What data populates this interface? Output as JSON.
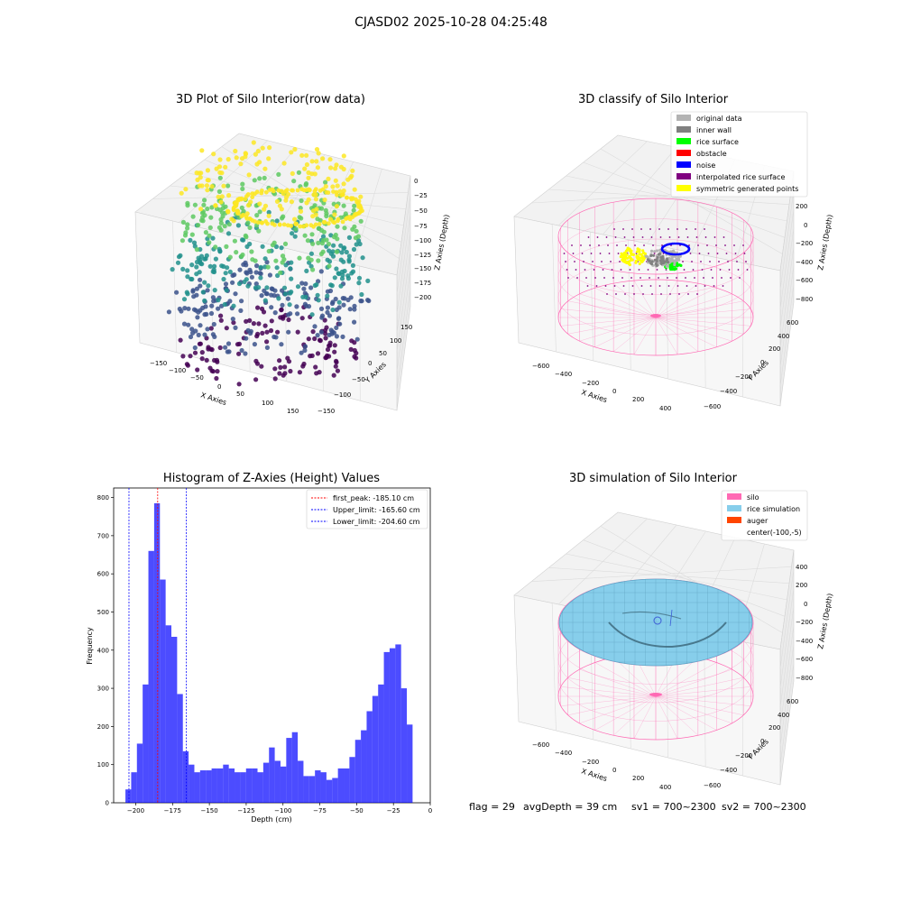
{
  "suptitle": "CJASD02 2025-10-28 04:25:48",
  "panels": {
    "raw": {
      "title": "3D Plot of Silo Interior(row data)",
      "xlabel": "X Axies",
      "ylabel": "Y Axies",
      "zlabel": "Z Axies (Depth)",
      "xticks": [
        "−150",
        "−100",
        "−50",
        "0",
        "50",
        "100",
        "150"
      ],
      "yticks": [
        "−150",
        "−100",
        "−50",
        "0",
        "50",
        "100",
        "150"
      ],
      "zticks": [
        "0",
        "−25",
        "−50",
        "−75",
        "−100",
        "−125",
        "−150",
        "−175",
        "−200"
      ],
      "colormap": [
        "#440154",
        "#3b528b",
        "#21918c",
        "#5ec962",
        "#fde725"
      ]
    },
    "classify": {
      "title": "3D classify of Silo Interior",
      "xlabel": "X Axies",
      "ylabel": "Y Axies",
      "zlabel": "Z Axies (Depth)",
      "xticks": [
        "−600",
        "−400",
        "−200",
        "0",
        "200",
        "400"
      ],
      "yticks": [
        "−600",
        "−400",
        "−200",
        "0",
        "200",
        "400",
        "600"
      ],
      "zticks": [
        "200",
        "0",
        "−200",
        "−400",
        "−600",
        "−800"
      ],
      "legend": [
        {
          "label": "original data",
          "color": "#b3b3b3"
        },
        {
          "label": "inner wall",
          "color": "#808080"
        },
        {
          "label": "rice surface",
          "color": "#00ff00"
        },
        {
          "label": "obstacle",
          "color": "#ff0000"
        },
        {
          "label": "noise",
          "color": "#0000ff"
        },
        {
          "label": "interpolated rice surface",
          "color": "#800080"
        },
        {
          "label": "symmetric generated points",
          "color": "#ffff00"
        }
      ],
      "wire_color": "#ff69b4"
    },
    "simulation": {
      "title": "3D simulation of Silo Interior",
      "xlabel": "X Axies",
      "ylabel": "Y Axies",
      "zlabel": "Z Axies (Depth)",
      "xticks": [
        "−600",
        "−400",
        "−200",
        "0",
        "200",
        "400"
      ],
      "yticks": [
        "−600",
        "−400",
        "−200",
        "0",
        "200",
        "400",
        "600"
      ],
      "zticks": [
        "400",
        "200",
        "0",
        "−200",
        "−400",
        "−600",
        "−800"
      ],
      "legend": [
        {
          "label": "silo",
          "color": "#ff69b4"
        },
        {
          "label": "rice simulation",
          "color": "#87ceeb"
        },
        {
          "label": "auger",
          "color": "#ff4500"
        },
        {
          "label": "center(-100,-5)",
          "color": ""
        }
      ]
    }
  },
  "footer": {
    "flag": "flag = 29",
    "avg_depth": "avgDepth = 39 cm",
    "sv1": "sv1 = 700~2300",
    "sv2": "sv2 = 700~2300"
  },
  "chart_data": {
    "type": "bar",
    "title": "Histogram of Z-Axies (Height) Values",
    "xlabel": "Depth (cm)",
    "ylabel": "Frequency",
    "xlim": [
      -215,
      0
    ],
    "ylim": [
      0,
      825
    ],
    "bin_start": -207,
    "bin_width": 3.9,
    "xticks": [
      -200,
      -175,
      -150,
      -125,
      -100,
      -75,
      -50,
      -25,
      0
    ],
    "yticks": [
      0,
      100,
      200,
      300,
      400,
      500,
      600,
      700,
      800
    ],
    "values": [
      35,
      80,
      155,
      310,
      660,
      785,
      585,
      465,
      435,
      285,
      135,
      100,
      80,
      85,
      85,
      90,
      90,
      100,
      90,
      80,
      80,
      90,
      90,
      80,
      105,
      145,
      110,
      95,
      170,
      185,
      110,
      70,
      70,
      85,
      80,
      60,
      65,
      90,
      90,
      120,
      165,
      190,
      240,
      280,
      310,
      395,
      405,
      415,
      300,
      205
    ],
    "bar_color": "#0000ff",
    "bar_opacity": 0.7,
    "vlines": [
      {
        "name": "first_peak",
        "label": "first_peak: -185.10 cm",
        "x": -185.1,
        "color": "#ff0000"
      },
      {
        "name": "upper_limit",
        "label": "Upper_limit: -165.60 cm",
        "x": -165.6,
        "color": "#0000ff"
      },
      {
        "name": "lower_limit",
        "label": "Lower_limit: -204.60 cm",
        "x": -204.6,
        "color": "#0000ff"
      }
    ],
    "tick_labels": [
      "−200",
      "−175",
      "−150",
      "−125",
      "−100",
      "−75",
      "−50",
      "−25",
      "0"
    ]
  }
}
